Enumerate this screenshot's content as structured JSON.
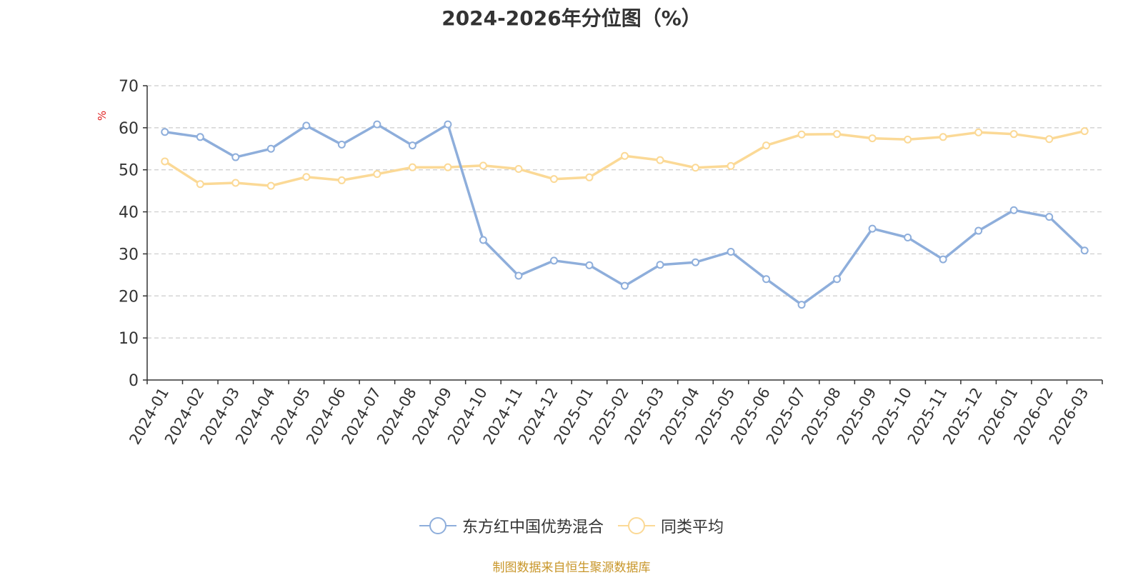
{
  "chart_data": {
    "type": "line",
    "title": "2024-2026年分位图（%）",
    "ylabel": "%",
    "ylim": [
      0,
      70
    ],
    "yticks": [
      0,
      10,
      20,
      30,
      40,
      50,
      60,
      70
    ],
    "grid": true,
    "legend_position": "bottom",
    "categories": [
      "2024-01",
      "2024-02",
      "2024-03",
      "2024-04",
      "2024-05",
      "2024-06",
      "2024-07",
      "2024-08",
      "2024-09",
      "2024-10",
      "2024-11",
      "2024-12",
      "2025-01",
      "2025-02",
      "2025-03",
      "2025-04",
      "2025-05",
      "2025-06",
      "2025-07",
      "2025-08",
      "2025-09",
      "2025-10",
      "2025-11",
      "2025-12",
      "2026-01",
      "2026-02",
      "2026-03"
    ],
    "series": [
      {
        "name": "东方红中国优势混合",
        "color": "#8eaedb",
        "values": [
          59.0,
          57.8,
          53.0,
          55.0,
          60.5,
          56.0,
          60.8,
          55.8,
          60.8,
          33.3,
          24.8,
          28.4,
          27.3,
          22.4,
          27.4,
          28.0,
          30.5,
          24.0,
          17.9,
          24.0,
          36.0,
          33.9,
          28.7,
          35.5,
          40.4,
          38.8,
          30.8
        ]
      },
      {
        "name": "同类平均",
        "color": "#fbd996",
        "values": [
          52.0,
          46.6,
          46.9,
          46.2,
          48.3,
          47.5,
          49.0,
          50.6,
          50.6,
          51.0,
          50.2,
          47.8,
          48.2,
          53.3,
          52.3,
          50.5,
          50.9,
          55.8,
          58.4,
          58.5,
          57.5,
          57.2,
          57.8,
          58.9,
          58.5,
          57.3,
          59.2
        ]
      }
    ]
  },
  "source_note": "制图数据来自恒生聚源数据库"
}
